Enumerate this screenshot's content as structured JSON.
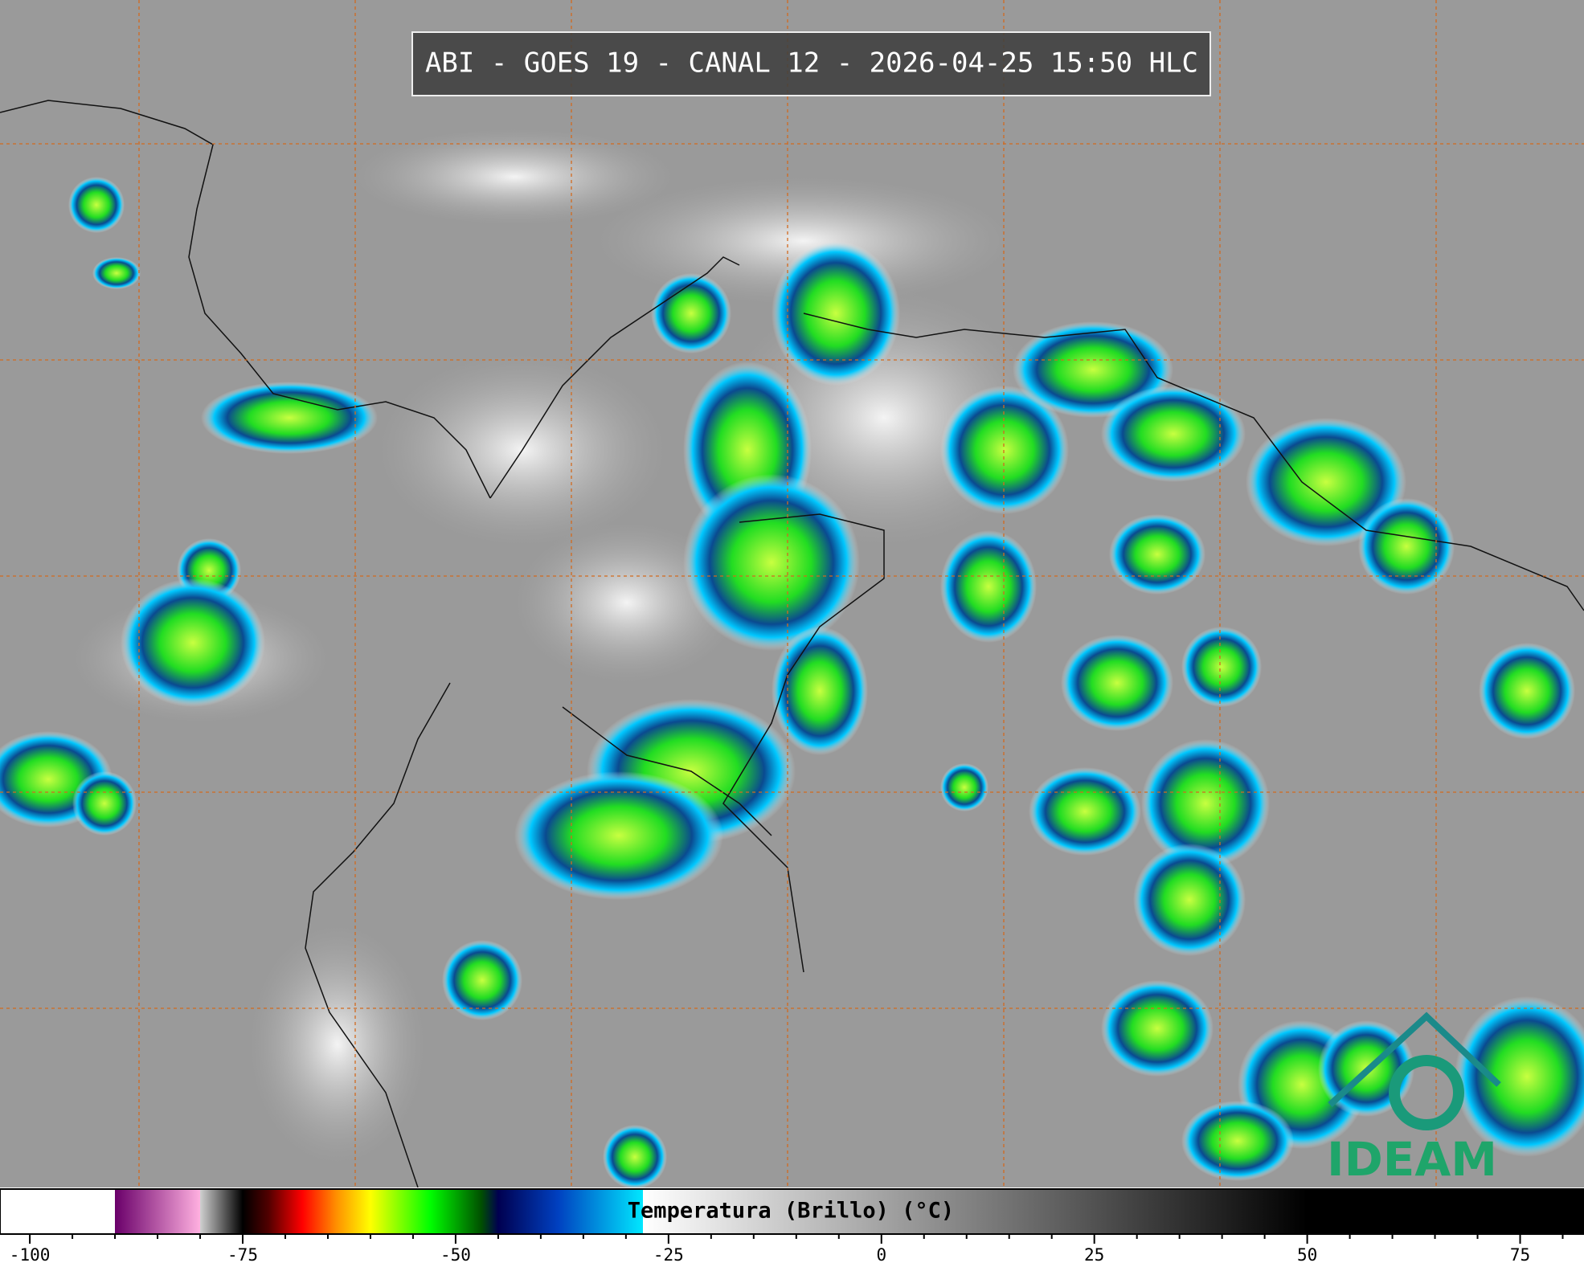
{
  "header": {
    "title": "ABI - GOES 19 - CANAL 12 - 2026-04-25 15:50 HLC"
  },
  "colorbar": {
    "label": "Temperatura (Brillo) (°C)",
    "lim": [
      -103.5,
      82.5
    ],
    "ticks": [
      -100,
      -75,
      -50,
      -25,
      0,
      25,
      50,
      75
    ],
    "minor_ticks": [
      -95,
      -90,
      -85,
      -80,
      -70,
      -65,
      -60,
      -55,
      -45,
      -40,
      -35,
      -30,
      -20,
      -15,
      -10,
      -5,
      5,
      10,
      15,
      20,
      30,
      35,
      40,
      45,
      55,
      60,
      65,
      70,
      80
    ],
    "stops": [
      {
        "value": -90,
        "color": "#ffffff"
      },
      {
        "value": -90,
        "color": "#6a006a"
      },
      {
        "value": -80,
        "color": "#ffb0e0"
      },
      {
        "value": -80,
        "color": "#d0d0d0"
      },
      {
        "value": -75,
        "color": "#000000"
      },
      {
        "value": -72,
        "color": "#500000"
      },
      {
        "value": -68,
        "color": "#ff0000"
      },
      {
        "value": -64,
        "color": "#ff9000"
      },
      {
        "value": -60,
        "color": "#ffff00"
      },
      {
        "value": -53,
        "color": "#00ff00"
      },
      {
        "value": -47,
        "color": "#005000"
      },
      {
        "value": -45,
        "color": "#000050"
      },
      {
        "value": -38,
        "color": "#0040c0"
      },
      {
        "value": -28,
        "color": "#00e8ff"
      },
      {
        "value": -28,
        "color": "#ffffff"
      },
      {
        "value": 50,
        "color": "#000000"
      }
    ]
  },
  "logo": {
    "text": "IDEAM"
  }
}
